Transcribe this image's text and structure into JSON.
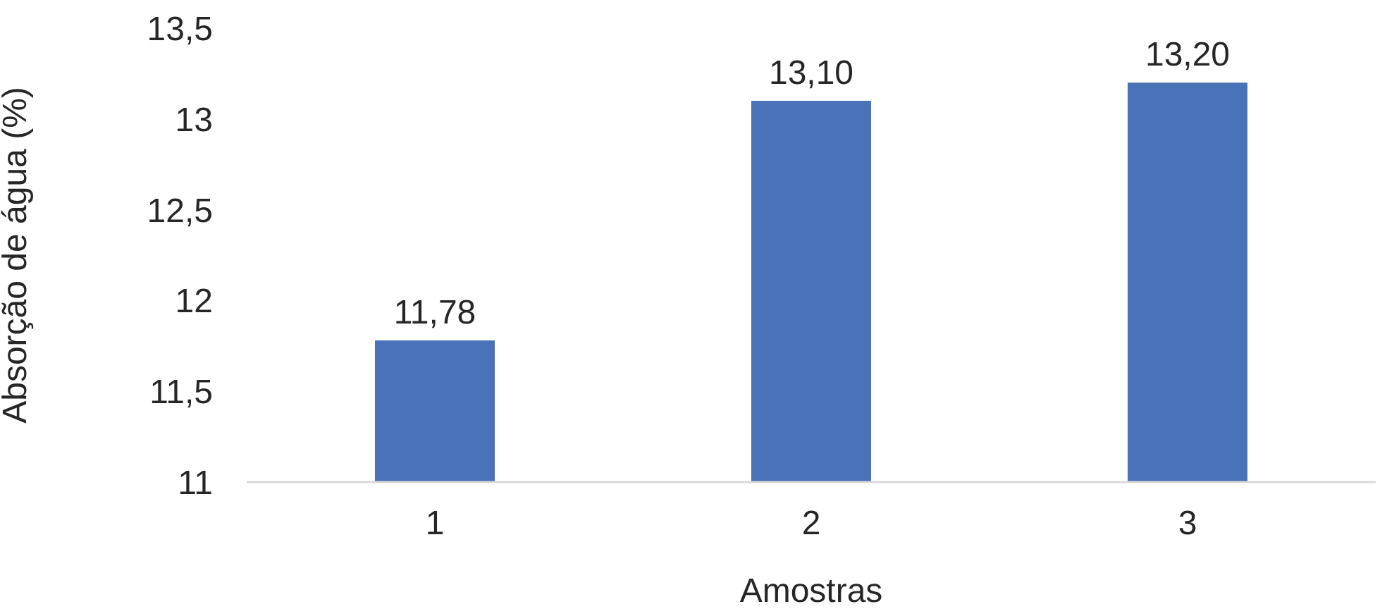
{
  "chart_data": {
    "type": "bar",
    "xlabel": "Amostras",
    "ylabel": "Absorção de água (%)",
    "categories": [
      "1",
      "2",
      "3"
    ],
    "series": [
      {
        "color": "#4a72b8",
        "values": [
          11.78,
          13.1,
          13.2
        ],
        "value_labels": [
          "11,78",
          "13,10",
          "13,20"
        ]
      }
    ],
    "ylim": [
      11,
      13.5
    ],
    "yticks": [
      11,
      {
        "value": 11.5,
        "label": "11,5"
      },
      12,
      {
        "value": 12.5,
        "label": "12,5"
      },
      13,
      {
        "value": 13.5,
        "label": "13,5"
      }
    ],
    "grid": false,
    "legend": false
  }
}
